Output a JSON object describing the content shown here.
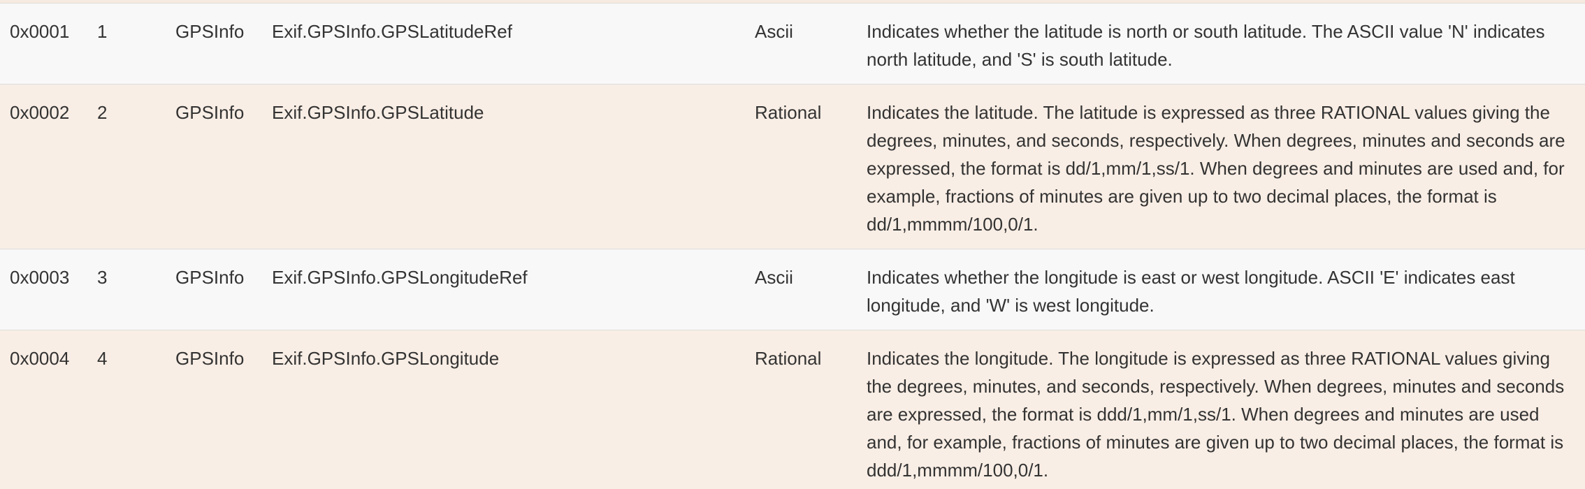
{
  "rows": [
    {
      "hex": "0x0001",
      "dec": "1",
      "ifd": "GPSInfo",
      "key": "Exif.GPSInfo.GPSLatitudeRef",
      "type": "Ascii",
      "description": "Indicates whether the latitude is north or south latitude. The ASCII value 'N' indicates north latitude, and 'S' is south latitude."
    },
    {
      "hex": "0x0002",
      "dec": "2",
      "ifd": "GPSInfo",
      "key": "Exif.GPSInfo.GPSLatitude",
      "type": "Rational",
      "description": "Indicates the latitude. The latitude is expressed as three RATIONAL values giving the degrees, minutes, and seconds, respectively. When degrees, minutes and seconds are expressed, the format is dd/1,mm/1,ss/1. When degrees and minutes are used and, for example, fractions of minutes are given up to two decimal places, the format is dd/1,mmmm/100,0/1."
    },
    {
      "hex": "0x0003",
      "dec": "3",
      "ifd": "GPSInfo",
      "key": "Exif.GPSInfo.GPSLongitudeRef",
      "type": "Ascii",
      "description": "Indicates whether the longitude is east or west longitude. ASCII 'E' indicates east longitude, and 'W' is west longitude."
    },
    {
      "hex": "0x0004",
      "dec": "4",
      "ifd": "GPSInfo",
      "key": "Exif.GPSInfo.GPSLongitude",
      "type": "Rational",
      "description": "Indicates the longitude. The longitude is expressed as three RATIONAL values giving the degrees, minutes, and seconds, respectively. When degrees, minutes and seconds are expressed, the format is ddd/1,mm/1,ss/1. When degrees and minutes are used and, for example, fractions of minutes are given up to two decimal places, the format is ddd/1,mmmm/100,0/1."
    }
  ]
}
